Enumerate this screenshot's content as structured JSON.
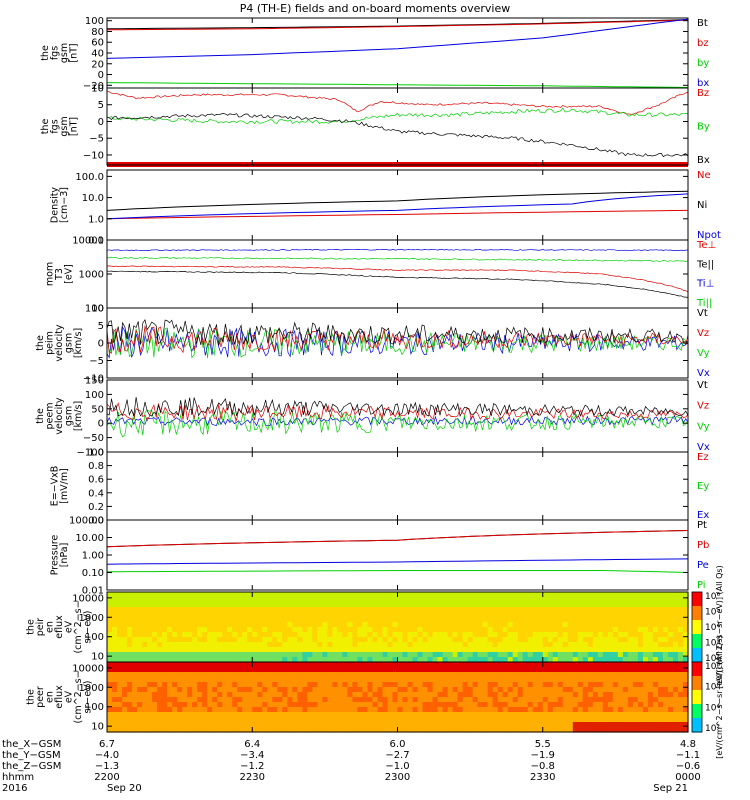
{
  "title": "P4 (TH-E) fields and on-board moments overview",
  "colors": {
    "black": "#000000",
    "red": "#e00000",
    "green": "#00d000",
    "blue": "#0000e0"
  },
  "chart_data": [
    {
      "type": "line",
      "ylabel": [
        "the",
        "fgs",
        "gsm",
        "[nT]"
      ],
      "ylim": [
        -25,
        105
      ],
      "yticks": [
        "100",
        "80",
        "60",
        "40",
        "20",
        "0",
        "−20"
      ],
      "ytickvals": [
        100,
        80,
        60,
        40,
        20,
        0,
        -20
      ],
      "series": [
        {
          "name": "Bt",
          "color": "black",
          "x": [
            0,
            0.25,
            0.5,
            0.75,
            1
          ],
          "y": [
            85,
            87,
            90,
            95,
            102
          ]
        },
        {
          "name": "bz",
          "color": "red",
          "x": [
            0,
            0.25,
            0.5,
            0.75,
            1
          ],
          "y": [
            83,
            85,
            89,
            94,
            101
          ]
        },
        {
          "name": "by",
          "color": "green",
          "x": [
            0,
            0.25,
            0.5,
            0.75,
            1
          ],
          "y": [
            -15,
            -17,
            -19,
            -21,
            -24
          ]
        },
        {
          "name": "bx",
          "color": "blue",
          "x": [
            0,
            0.25,
            0.5,
            0.75,
            1
          ],
          "y": [
            30,
            37,
            48,
            68,
            103
          ]
        }
      ],
      "legend": [
        "Bt",
        "bz",
        "by",
        "bx"
      ],
      "legend_colors": [
        "black",
        "red",
        "green",
        "blue"
      ]
    },
    {
      "type": "line",
      "ylabel": [
        "the",
        "fgs",
        "gsm",
        "[nT]"
      ],
      "ylim": [
        -13,
        10
      ],
      "yticks": [
        "10",
        "5",
        "0",
        "−5",
        "−10"
      ],
      "ytickvals": [
        10,
        5,
        0,
        -5,
        -10
      ],
      "series": [
        {
          "name": "Bz",
          "color": "red",
          "x": [
            0,
            0.05,
            0.15,
            0.3,
            0.4,
            0.43,
            0.47,
            0.55,
            0.65,
            0.75,
            0.85,
            0.9,
            0.95,
            1
          ],
          "y": [
            9,
            7,
            8,
            8,
            6.5,
            3,
            6,
            5,
            5.5,
            4.5,
            4.5,
            2,
            5,
            9
          ],
          "noise": 0.3
        },
        {
          "name": "By",
          "color": "green",
          "x": [
            0,
            0.2,
            0.4,
            0.5,
            0.6,
            0.7,
            0.8,
            0.9,
            1
          ],
          "y": [
            1,
            0,
            0,
            2,
            2,
            3,
            3.5,
            2,
            2
          ],
          "noise": 0.6
        },
        {
          "name": "Bx",
          "color": "black",
          "x": [
            0,
            0.2,
            0.35,
            0.42,
            0.5,
            0.6,
            0.7,
            0.8,
            0.9,
            1
          ],
          "y": [
            1,
            2,
            1,
            0,
            -3,
            -4,
            -5,
            -7,
            -10,
            -10
          ],
          "noise": 0.5
        }
      ],
      "legend": [
        "Bz",
        "By",
        "Bx"
      ],
      "legend_colors": [
        "red",
        "green",
        "black"
      ]
    },
    {
      "type": "line",
      "ylabel": [
        "Density",
        "[cm−3]"
      ],
      "log": true,
      "ylim": [
        0.1,
        200
      ],
      "yticks": [
        "100.0",
        "10.0",
        "1.0",
        "0.1"
      ],
      "ytickvals": [
        100,
        10,
        1,
        0.1
      ],
      "series": [
        {
          "name": "Ne",
          "color": "red",
          "x": [
            0,
            0.5,
            1
          ],
          "y": [
            1.0,
            1.6,
            2.5
          ]
        },
        {
          "name": "Ni",
          "color": "black",
          "x": [
            0,
            0.5,
            1
          ],
          "y": [
            2.5,
            7,
            20
          ]
        },
        {
          "name": "Npot",
          "color": "blue",
          "x": [
            0,
            0.5,
            0.8,
            1
          ],
          "y": [
            1.0,
            2.5,
            5,
            15
          ]
        }
      ],
      "legend": [
        "Ne",
        "Ni",
        "Npot"
      ],
      "legend_colors": [
        "red",
        "black",
        "blue"
      ]
    },
    {
      "type": "line",
      "ylabel": [
        "mom",
        "T3",
        "[eV]"
      ],
      "log": true,
      "ylim": [
        100,
        10000
      ],
      "yticks": [
        "10000",
        "1000",
        "100"
      ],
      "ytickvals": [
        10000,
        1000,
        100
      ],
      "series": [
        {
          "name": "Te⊥",
          "color": "red",
          "x": [
            0,
            0.3,
            0.5,
            0.7,
            0.85,
            1
          ],
          "y": [
            1700,
            1600,
            1300,
            1300,
            1000,
            300
          ],
          "noise": 0.03
        },
        {
          "name": "Te||",
          "color": "black",
          "x": [
            0,
            0.3,
            0.5,
            0.7,
            0.85,
            1
          ],
          "y": [
            1200,
            1100,
            800,
            700,
            500,
            200
          ],
          "noise": 0.03
        },
        {
          "name": "Ti⊥",
          "color": "blue",
          "x": [
            0,
            0.5,
            1
          ],
          "y": [
            5000,
            5200,
            5000
          ],
          "noise": 0.03
        },
        {
          "name": "Ti||",
          "color": "green",
          "x": [
            0,
            0.5,
            1
          ],
          "y": [
            3000,
            2800,
            2400
          ],
          "noise": 0.04
        }
      ],
      "legend": [
        "Te⊥",
        "Te||",
        "Ti⊥",
        "Ti||"
      ],
      "legend_colors": [
        "red",
        "black",
        "blue",
        "green"
      ]
    },
    {
      "type": "line",
      "ylabel": [
        "the",
        "peim",
        "velocity",
        "gsm",
        "[km/s]"
      ],
      "ylim": [
        -10,
        10
      ],
      "yticks": [
        "10",
        "5",
        "0",
        "−5",
        "−10"
      ],
      "ytickvals": [
        10,
        5,
        0,
        -5,
        -10
      ],
      "series": [
        {
          "name": "Vx",
          "color": "blue",
          "x": [
            0,
            1
          ],
          "y": [
            0,
            0
          ],
          "noise": 3,
          "decay": true
        },
        {
          "name": "Vy",
          "color": "green",
          "x": [
            0,
            1
          ],
          "y": [
            0,
            0
          ],
          "noise": 3,
          "decay": true
        },
        {
          "name": "Vz",
          "color": "red",
          "x": [
            0,
            1
          ],
          "y": [
            1,
            1
          ],
          "noise": 2.5,
          "decay": true
        },
        {
          "name": "Vt",
          "color": "black",
          "x": [
            0,
            1
          ],
          "y": [
            3,
            2
          ],
          "noise": 2.5,
          "decay": true
        }
      ],
      "legend": [
        "Vt",
        "Vz",
        "Vy",
        "Vx"
      ],
      "legend_colors": [
        "black",
        "red",
        "green",
        "blue"
      ]
    },
    {
      "type": "line",
      "ylabel": [
        "the",
        "peem",
        "velocity",
        "gsm",
        "[km/s]"
      ],
      "ylim": [
        -100,
        150
      ],
      "yticks": [
        "150",
        "100",
        "50",
        "0",
        "−50",
        "−100"
      ],
      "ytickvals": [
        150,
        100,
        50,
        0,
        -50,
        -100
      ],
      "series": [
        {
          "name": "Vx",
          "color": "blue",
          "x": [
            0,
            1
          ],
          "y": [
            5,
            10
          ],
          "noise": 15
        },
        {
          "name": "Vy",
          "color": "green",
          "x": [
            0,
            1
          ],
          "y": [
            0,
            5
          ],
          "noise": 30,
          "decay": true
        },
        {
          "name": "Vz",
          "color": "red",
          "x": [
            0,
            1
          ],
          "y": [
            40,
            30
          ],
          "noise": 20,
          "decay": true
        },
        {
          "name": "Vt",
          "color": "black",
          "x": [
            0,
            1
          ],
          "y": [
            60,
            40
          ],
          "noise": 22,
          "decay": true
        }
      ],
      "legend": [
        "Vt",
        "Vz",
        "Vy",
        "Vx"
      ],
      "legend_colors": [
        "black",
        "red",
        "green",
        "blue"
      ]
    },
    {
      "type": "line",
      "ylabel": [
        "E=−VxB",
        "[mV/m]"
      ],
      "ylim": [
        0,
        1
      ],
      "yticks": [
        "1.0",
        "0.8",
        "0.6",
        "0.4",
        "0.2",
        "0.0"
      ],
      "ytickvals": [
        1,
        0.8,
        0.6,
        0.4,
        0.2,
        0
      ],
      "series": [],
      "legend": [
        "Ez",
        "Ey",
        "Ex"
      ],
      "legend_colors": [
        "red",
        "green",
        "blue"
      ]
    },
    {
      "type": "line",
      "ylabel": [
        "Pressure",
        "[nPa]"
      ],
      "log": true,
      "ylim": [
        0.01,
        100
      ],
      "yticks": [
        "100.00",
        "10.00",
        "1.00",
        "0.10",
        "0.01"
      ],
      "ytickvals": [
        100,
        10,
        1,
        0.1,
        0.01
      ],
      "series": [
        {
          "name": "Pt",
          "color": "black",
          "x": [
            0,
            0.5,
            1
          ],
          "y": [
            3,
            7,
            25
          ]
        },
        {
          "name": "Pb",
          "color": "red",
          "x": [
            0,
            0.5,
            1
          ],
          "y": [
            3,
            7,
            25
          ]
        },
        {
          "name": "Pe",
          "color": "blue",
          "x": [
            0,
            0.5,
            1
          ],
          "y": [
            0.3,
            0.4,
            0.6
          ]
        },
        {
          "name": "Pi",
          "color": "green",
          "x": [
            0,
            0.5,
            0.85,
            1
          ],
          "y": [
            0.11,
            0.13,
            0.13,
            0.1
          ]
        }
      ],
      "legend": [
        "Pt",
        "Pb",
        "Pe",
        "Pi"
      ],
      "legend_colors": [
        "black",
        "red",
        "blue",
        "green"
      ]
    },
    {
      "type": "heatmap",
      "ylabel": [
        "the",
        "peir",
        "en",
        "eflux",
        "eV",
        "(cm^2−s−",
        "sr−eV)"
      ],
      "log": true,
      "ylim": [
        5,
        20000
      ],
      "yticks": [
        "10000",
        "1000",
        "100",
        "10"
      ],
      "ytickvals": [
        10000,
        1000,
        100,
        10
      ],
      "colorbar": {
        "ticks": [
          "10⁶",
          "10⁵",
          "10⁴",
          "10³",
          "10²"
        ],
        "label": "[eV/(cm^2−s−sr−eV)] (All Qs)"
      },
      "level": "ion"
    },
    {
      "type": "heatmap",
      "ylabel": [
        "the",
        "peer",
        "en",
        "eflux",
        "eV",
        "(cm^2−s−",
        "sr−eV)"
      ],
      "log": true,
      "ylim": [
        5,
        20000
      ],
      "yticks": [
        "10000",
        "1000",
        "100",
        "10"
      ],
      "ytickvals": [
        10000,
        1000,
        100,
        10
      ],
      "colorbar": {
        "ticks": [
          "10⁸",
          "10⁶",
          "10⁴",
          "10²"
        ],
        "label": "[eV/(cm^2−s−sr−eV)] (All Qs)"
      },
      "level": "electron"
    }
  ],
  "xaxis": {
    "rows": [
      {
        "label": "the_X−GSM",
        "vals": [
          "6.7",
          "6.4",
          "6.0",
          "5.5",
          "4.8"
        ]
      },
      {
        "label": "the_Y−GSM",
        "vals": [
          "−4.0",
          "−3.4",
          "−2.7",
          "−1.9",
          "−1.1"
        ]
      },
      {
        "label": "the_Z−GSM",
        "vals": [
          "−1.3",
          "−1.2",
          "−1.0",
          "−0.8",
          "−0.6"
        ]
      },
      {
        "label": "hhmm",
        "vals": [
          "2200",
          "2230",
          "2300",
          "2330",
          "0000"
        ]
      },
      {
        "label": "2016",
        "vals": [
          "Sep 20",
          "",
          "",
          "",
          "Sep 21"
        ]
      }
    ]
  }
}
